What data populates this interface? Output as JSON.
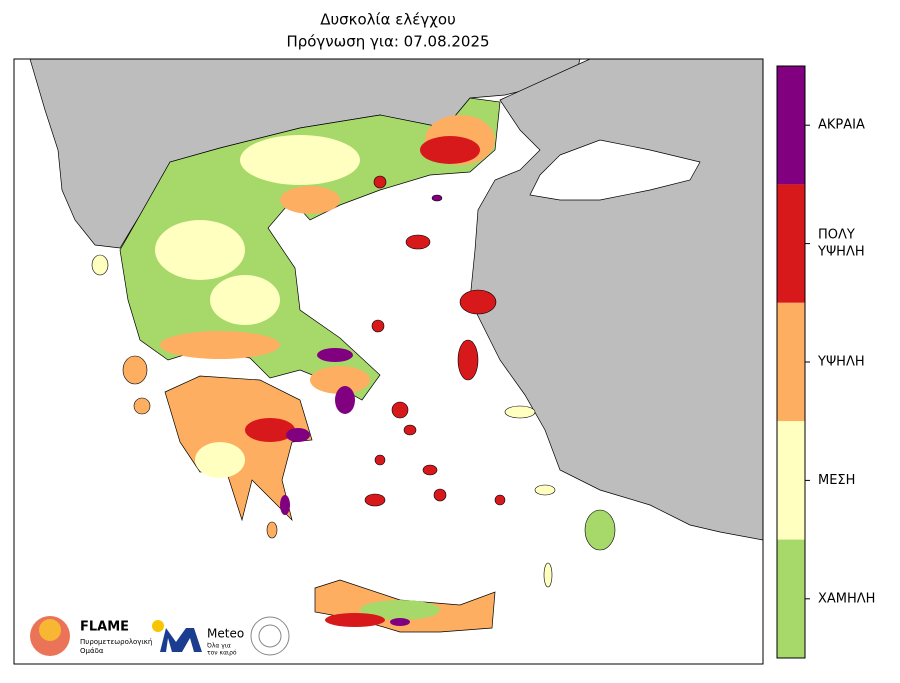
{
  "title": "Δυσκολία ελέγχου",
  "subtitle": "Πρόγνωση για: 07.08.2025",
  "legend": [
    {
      "lines": [
        "ΑΚΡΑΙΑ"
      ],
      "color": "#800080"
    },
    {
      "lines": [
        "ΠΟΛΥ",
        "ΥΨΗΛΗ"
      ],
      "color": "#d7191c"
    },
    {
      "lines": [
        "ΥΨΗΛΗ"
      ],
      "color": "#fdae61"
    },
    {
      "lines": [
        "ΜΕΣΗ"
      ],
      "color": "#ffffbf"
    },
    {
      "lines": [
        "ΧΑΜΗΛΗ"
      ],
      "color": "#a6d96a"
    }
  ],
  "logos": {
    "flame": {
      "name": "FLAME",
      "line1": "Πυρομετεωρολογική",
      "line2": "Ομάδα"
    },
    "meteo": {
      "name": "Meteo",
      "line1": "Όλα για",
      "line2": "τον καιρό"
    }
  }
}
